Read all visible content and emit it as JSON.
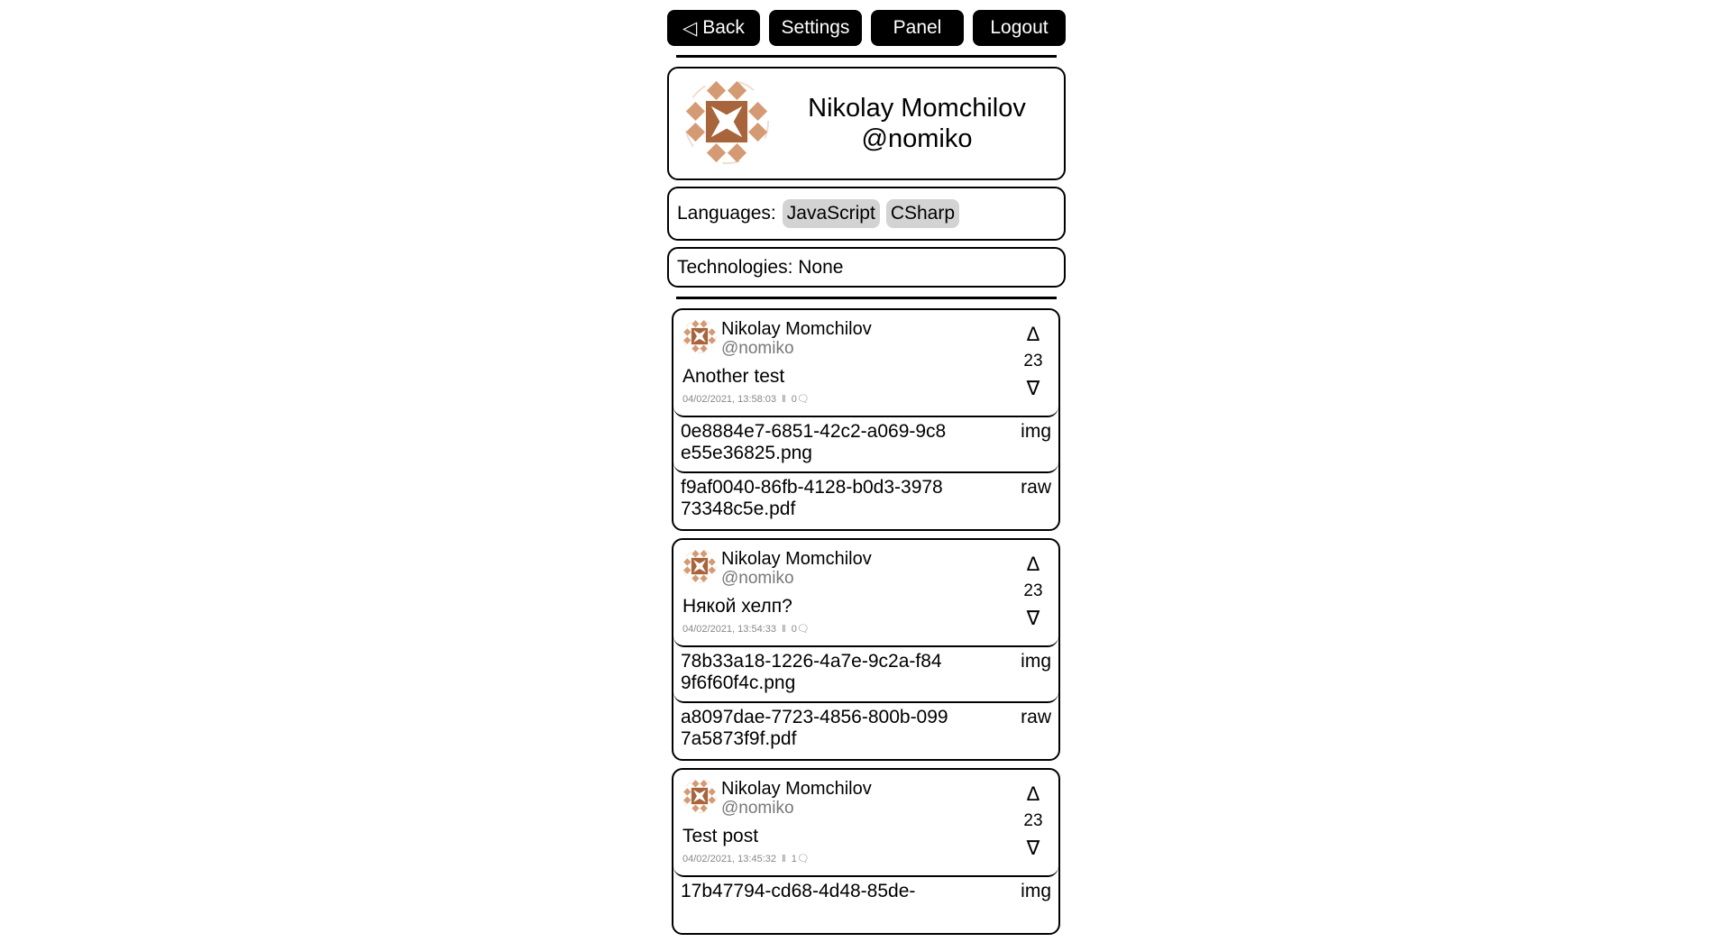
{
  "nav": {
    "back": "Back",
    "back_icon": "triangle-left",
    "settings": "Settings",
    "panel": "Panel",
    "logout": "Logout"
  },
  "profile": {
    "name": "Nikolay Momchilov",
    "username": "@nomiko",
    "avatar_colors": [
      "#a8643a",
      "#d49a74"
    ]
  },
  "languages": {
    "label": "Languages:",
    "items": [
      "JavaScript",
      "CSharp"
    ]
  },
  "technologies": {
    "label": "Technologies: None"
  },
  "posts": [
    {
      "name": "Nikolay Momchilov",
      "username": "@nomiko",
      "text": "Another test",
      "date": "04/02/2021, 13:58:03",
      "sep": "‖",
      "comments": "0",
      "score": "23",
      "up": "Δ",
      "down": "∇",
      "files": [
        {
          "name": "0e8884e7-6851-42c2-a069-9c8e55e36825.png",
          "type": "img"
        },
        {
          "name": "f9af0040-86fb-4128-b0d3-397873348c5e.pdf",
          "type": "raw"
        }
      ]
    },
    {
      "name": "Nikolay Momchilov",
      "username": "@nomiko",
      "text": "Някой хелп?",
      "date": "04/02/2021, 13:54:33",
      "sep": "‖",
      "comments": "0",
      "score": "23",
      "up": "Δ",
      "down": "∇",
      "files": [
        {
          "name": "78b33a18-1226-4a7e-9c2a-f849f6f60f4c.png",
          "type": "img"
        },
        {
          "name": "a8097dae-7723-4856-800b-0997a5873f9f.pdf",
          "type": "raw"
        }
      ]
    },
    {
      "name": "Nikolay Momchilov",
      "username": "@nomiko",
      "text": "Test post",
      "date": "04/02/2021, 13:45:32",
      "sep": "‖",
      "comments": "1",
      "score": "23",
      "up": "Δ",
      "down": "∇",
      "files": [
        {
          "name": "17b47794-cd68-4d48-85de-",
          "type": "img"
        }
      ]
    }
  ]
}
